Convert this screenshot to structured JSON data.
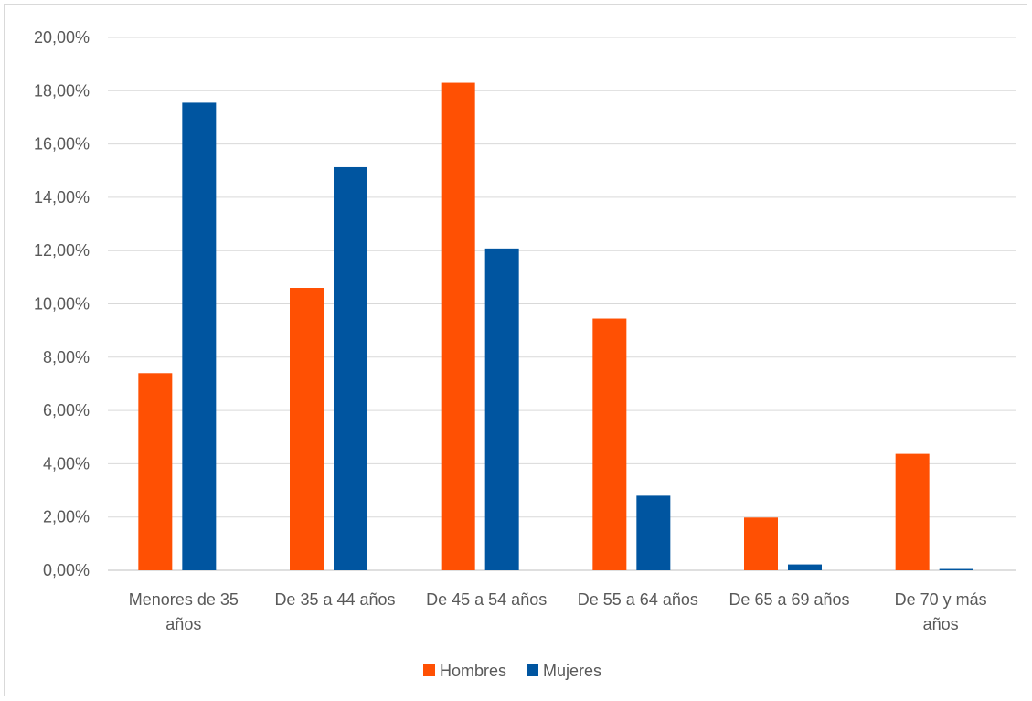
{
  "chart_data": {
    "type": "bar",
    "categories": [
      [
        "Menores de 35",
        "años"
      ],
      [
        "De 35 a 44 años"
      ],
      [
        "De 45 a 54 años"
      ],
      [
        "De 55 a 64 años"
      ],
      [
        "De 65 a 69 años"
      ],
      [
        "De 70 y más",
        "años"
      ]
    ],
    "series": [
      {
        "name": "Hombres",
        "color": "#FF5003",
        "values": [
          7.4,
          10.6,
          18.3,
          9.45,
          1.98,
          4.37
        ]
      },
      {
        "name": "Mujeres",
        "color": "#0055A0",
        "values": [
          17.55,
          15.13,
          12.08,
          2.8,
          0.22,
          0.05
        ]
      }
    ],
    "ylim": [
      0,
      20
    ],
    "ytick_step": 2,
    "ytick_labels": [
      "0,00%",
      "2,00%",
      "4,00%",
      "6,00%",
      "8,00%",
      "10,00%",
      "12,00%",
      "14,00%",
      "16,00%",
      "18,00%",
      "20,00%"
    ],
    "grid": true,
    "legend_position": "bottom"
  }
}
